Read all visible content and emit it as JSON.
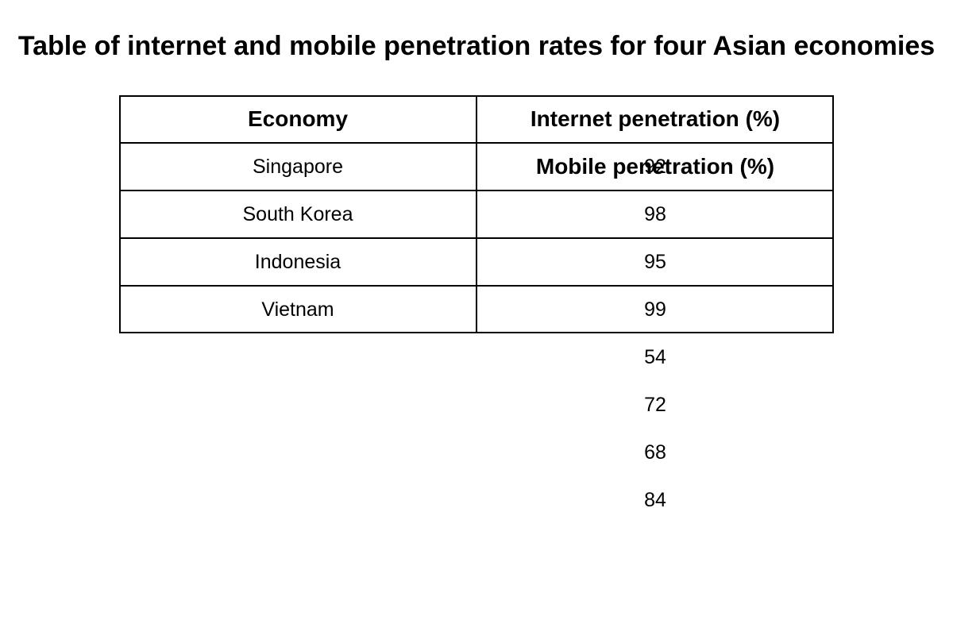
{
  "chart_data": {
    "type": "table",
    "title": "Table of internet and mobile penetration rates for four Asian economies",
    "columns": [
      "Economy",
      "Internet penetration (%)",
      "Mobile penetration (%)"
    ],
    "rows": [
      {
        "economy": "Singapore",
        "internet": 92,
        "mobile": 54
      },
      {
        "economy": "South Korea",
        "internet": 98,
        "mobile": 72
      },
      {
        "economy": "Indonesia",
        "internet": 95,
        "mobile": 68
      },
      {
        "economy": "Vietnam",
        "internet": 99,
        "mobile": 84
      }
    ]
  }
}
